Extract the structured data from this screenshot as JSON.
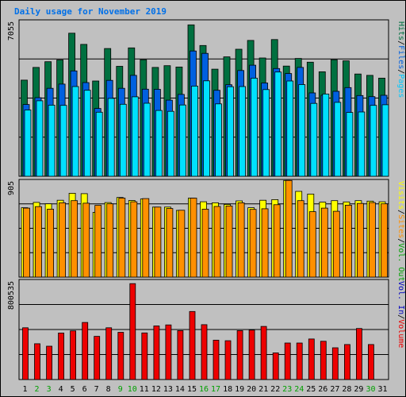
{
  "title": "Daily usage for November 2019",
  "colors": {
    "hits": "#007040",
    "files": "#0060e0",
    "pages": "#00e0ff",
    "visits": "#ffff00",
    "sites": "#ff9000",
    "kbin": "#000000",
    "kbout": "#000000",
    "volume": "#ee0000",
    "weekend": "#00a000",
    "weekday": "#000000",
    "grid": "#000000",
    "background": "#c0c0c0"
  },
  "legends": {
    "top": [
      {
        "text": "Hits",
        "color": "#007040"
      },
      {
        "text": "/",
        "color": "#000000"
      },
      {
        "text": "Files",
        "color": "#0060e0"
      },
      {
        "text": "/",
        "color": "#000000"
      },
      {
        "text": "Pages",
        "color": "#00c8ff"
      }
    ],
    "middle": [
      {
        "text": "Visits",
        "color": "#ffff00"
      },
      {
        "text": "/",
        "color": "#000000"
      },
      {
        "text": "Sites",
        "color": "#ff9000"
      },
      {
        "text": "/",
        "color": "#000000"
      },
      {
        "text": "Vol. Out",
        "color": "#00a000"
      }
    ],
    "bottom": [
      {
        "text": "Vol. In",
        "color": "#0000c0"
      },
      {
        "text": "/",
        "color": "#000000"
      },
      {
        "text": "Volume",
        "color": "#ee0000"
      }
    ]
  },
  "chart_data": [
    {
      "type": "bar",
      "panel": "hits-files-pages",
      "ymax_label": "7055",
      "ylim": [
        0,
        7055
      ],
      "categories": [
        "1",
        "2",
        "3",
        "4",
        "5",
        "6",
        "7",
        "8",
        "9",
        "10",
        "11",
        "12",
        "13",
        "14",
        "15",
        "16",
        "17",
        "18",
        "19",
        "20",
        "21",
        "22",
        "23",
        "24",
        "25",
        "26",
        "27",
        "28",
        "29",
        "30",
        "31"
      ],
      "weekend": [
        2,
        3,
        9,
        10,
        16,
        17,
        23,
        24,
        30
      ],
      "series": [
        {
          "name": "Hits",
          "values": [
            4380,
            4960,
            5220,
            5300,
            6520,
            6010,
            4340,
            5820,
            5010,
            5850,
            5310,
            4960,
            5040,
            4980,
            6900,
            5960,
            4880,
            5440,
            5790,
            6190,
            5390,
            6230,
            5020,
            5370,
            5200,
            4760,
            5310,
            5260,
            4660,
            4600,
            4470
          ]
        },
        {
          "name": "Files",
          "values": [
            3270,
            3580,
            4010,
            4200,
            4800,
            4270,
            3090,
            4370,
            4010,
            4600,
            3970,
            3960,
            3470,
            3730,
            5710,
            5600,
            3920,
            4170,
            4820,
            5060,
            4250,
            4910,
            4680,
            4960,
            3800,
            3690,
            3870,
            4040,
            3680,
            3630,
            3690
          ]
        },
        {
          "name": "Pages",
          "values": [
            3020,
            3440,
            3240,
            3230,
            4090,
            3920,
            2920,
            3550,
            3280,
            3620,
            3330,
            3000,
            2960,
            3250,
            4110,
            4350,
            3300,
            4080,
            4090,
            4470,
            3950,
            4750,
            4340,
            4180,
            3320,
            3750,
            3370,
            2910,
            2930,
            3230,
            3260
          ]
        }
      ]
    },
    {
      "type": "bar",
      "panel": "visits-sites",
      "ymax_label": "905",
      "ylim": [
        0,
        905
      ],
      "categories": [
        "1",
        "2",
        "3",
        "4",
        "5",
        "6",
        "7",
        "8",
        "9",
        "10",
        "11",
        "12",
        "13",
        "14",
        "15",
        "16",
        "17",
        "18",
        "19",
        "20",
        "21",
        "22",
        "23",
        "24",
        "25",
        "26",
        "27",
        "28",
        "29",
        "30",
        "31"
      ],
      "series": [
        {
          "name": "Visits",
          "values": [
            654,
            704,
            690,
            724,
            790,
            786,
            610,
            702,
            750,
            722,
            736,
            660,
            660,
            628,
            745,
            710,
            700,
            684,
            718,
            654,
            724,
            730,
            910,
            808,
            782,
            706,
            720,
            708,
            720,
            716,
            710
          ]
        },
        {
          "name": "Sites",
          "values": [
            650,
            664,
            640,
            700,
            720,
            696,
            676,
            690,
            744,
            710,
            740,
            660,
            646,
            630,
            744,
            640,
            666,
            670,
            700,
            638,
            644,
            682,
            910,
            720,
            616,
            650,
            620,
            678,
            694,
            702,
            690
          ]
        }
      ]
    },
    {
      "type": "bar",
      "panel": "volume",
      "ymax_label": "800535",
      "ylim": [
        0,
        800535
      ],
      "categories": [
        "1",
        "2",
        "3",
        "4",
        "5",
        "6",
        "7",
        "8",
        "9",
        "10",
        "11",
        "12",
        "13",
        "14",
        "15",
        "16",
        "17",
        "18",
        "19",
        "20",
        "21",
        "22",
        "23",
        "24",
        "25",
        "26",
        "27",
        "28",
        "29",
        "30",
        "31"
      ],
      "series": [
        {
          "name": "Volume",
          "values": [
            421000,
            291000,
            271000,
            378000,
            396000,
            464000,
            351000,
            421000,
            384000,
            780000,
            379000,
            436000,
            444000,
            398000,
            553000,
            446000,
            320000,
            316000,
            398000,
            402000,
            432000,
            217000,
            297000,
            297000,
            330000,
            311000,
            258000,
            285000,
            415000,
            285000,
            0
          ]
        }
      ]
    }
  ]
}
